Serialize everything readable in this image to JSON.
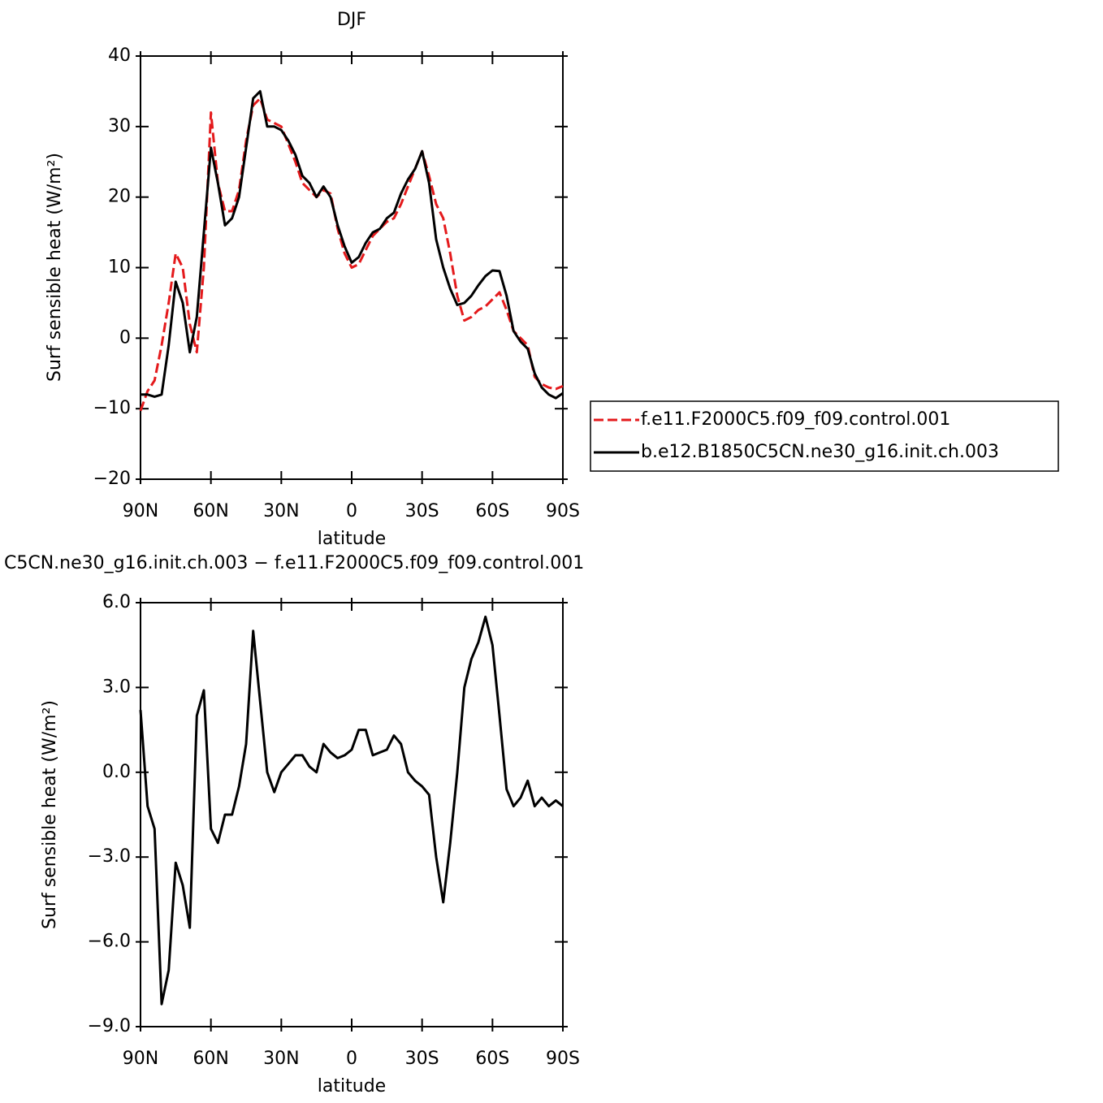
{
  "chart_data": [
    {
      "type": "line",
      "title": "DJF",
      "xlabel": "latitude",
      "ylabel": "Surf sensible heat (W/m²)",
      "x": [
        90,
        87,
        84,
        81,
        78,
        75,
        72,
        69,
        66,
        63,
        60,
        57,
        54,
        51,
        48,
        45,
        42,
        39,
        36,
        33,
        30,
        27,
        24,
        21,
        18,
        15,
        12,
        9,
        6,
        3,
        0,
        -3,
        -6,
        -9,
        -12,
        -15,
        -18,
        -21,
        -24,
        -27,
        -30,
        -33,
        -36,
        -39,
        -42,
        -45,
        -48,
        -51,
        -54,
        -57,
        -60,
        -63,
        -66,
        -69,
        -72,
        -75,
        -78,
        -81,
        -84,
        -87,
        -90
      ],
      "xlim": [
        90,
        -90
      ],
      "xticks": [
        {
          "value": 90,
          "label": "90N"
        },
        {
          "value": 60,
          "label": "60N"
        },
        {
          "value": 30,
          "label": "30N"
        },
        0,
        {
          "value": -30,
          "label": "30S"
        },
        {
          "value": -60,
          "label": "60S"
        },
        {
          "value": -90,
          "label": "90S"
        }
      ],
      "ylim": [
        -20,
        40
      ],
      "yticks": [
        {
          "value": -20,
          "label": "−20"
        },
        {
          "value": -10,
          "label": "−10"
        },
        0,
        10,
        20,
        30,
        40
      ],
      "legend": "right",
      "series": [
        {
          "name": "f.e11.F2000C5.f09_f09.control.001",
          "color": "#e41a1c",
          "dash": true,
          "values": [
            -10.3,
            -7.5,
            -6,
            -1,
            5,
            12,
            10,
            2,
            -2,
            10,
            32,
            22,
            18,
            18,
            21,
            28,
            33,
            34,
            31,
            30.5,
            30,
            27.5,
            25,
            22,
            21,
            20,
            21,
            20.5,
            15.5,
            12,
            10,
            10.5,
            12.5,
            14.5,
            15.5,
            16.5,
            17,
            19,
            21.5,
            24,
            26.5,
            23,
            19,
            17,
            12,
            6,
            2.5,
            3,
            4,
            4.5,
            5.5,
            6.5,
            4,
            1,
            0,
            -1,
            -5.5,
            -6.5,
            -7,
            -7.2,
            -6.8
          ]
        },
        {
          "name": "b.e12.B1850C5CN.ne30_g16.init.ch.003",
          "color": "#000000",
          "dash": false,
          "values": [
            -8,
            -8,
            -8.3,
            -8,
            -1,
            8,
            5,
            -2,
            3,
            15,
            27,
            22,
            16,
            17,
            20,
            27,
            34,
            35,
            30,
            30,
            29.5,
            28,
            26,
            23,
            22,
            20,
            21.5,
            20,
            16,
            13,
            10.7,
            11.5,
            13.5,
            15,
            15.5,
            17,
            17.8,
            20.5,
            22.5,
            24,
            26.5,
            22,
            14,
            10,
            7,
            4.7,
            5,
            6,
            7.5,
            8.8,
            9.6,
            9.5,
            6,
            1,
            -0.5,
            -1.5,
            -5,
            -7,
            -8,
            -8.5,
            -7.8
          ]
        }
      ]
    },
    {
      "type": "line",
      "title": "C5CN.ne30_g16.init.ch.003 − f.e11.F2000C5.f09_f09.control.001",
      "xlabel": "latitude",
      "ylabel": "Surf sensible heat (W/m²)",
      "x": [
        90,
        87,
        84,
        81,
        78,
        75,
        72,
        69,
        66,
        63,
        60,
        57,
        54,
        51,
        48,
        45,
        42,
        39,
        36,
        33,
        30,
        27,
        24,
        21,
        18,
        15,
        12,
        9,
        6,
        3,
        0,
        -3,
        -6,
        -9,
        -12,
        -15,
        -18,
        -21,
        -24,
        -27,
        -30,
        -33,
        -36,
        -39,
        -42,
        -45,
        -48,
        -51,
        -54,
        -57,
        -60,
        -63,
        -66,
        -69,
        -72,
        -75,
        -78,
        -81,
        -84,
        -87,
        -90
      ],
      "xlim": [
        90,
        -90
      ],
      "xticks": [
        {
          "value": 90,
          "label": "90N"
        },
        {
          "value": 60,
          "label": "60N"
        },
        {
          "value": 30,
          "label": "30N"
        },
        0,
        {
          "value": -30,
          "label": "30S"
        },
        {
          "value": -60,
          "label": "60S"
        },
        {
          "value": -90,
          "label": "90S"
        }
      ],
      "ylim": [
        -9,
        6
      ],
      "yticks": [
        {
          "value": -9,
          "label": "−9.0"
        },
        {
          "value": -6,
          "label": "−6.0"
        },
        {
          "value": -3,
          "label": "−3.0"
        },
        {
          "value": 0,
          "label": "0.0"
        },
        {
          "value": 3,
          "label": "3.0"
        },
        {
          "value": 6,
          "label": "6.0"
        }
      ],
      "series": [
        {
          "color": "#000000",
          "dash": false,
          "values": [
            2.2,
            -1.2,
            -2,
            -8.2,
            -7,
            -3.2,
            -4,
            -5.5,
            2,
            2.9,
            -2,
            -2.5,
            -1.5,
            -1.5,
            -0.5,
            1,
            5,
            2.5,
            0,
            -0.7,
            0,
            0.3,
            0.6,
            0.6,
            0.2,
            0,
            1,
            0.7,
            0.5,
            0.6,
            0.8,
            1.5,
            1.5,
            0.6,
            0.7,
            0.8,
            1.3,
            1,
            0,
            -0.3,
            -0.5,
            -0.8,
            -3,
            -4.6,
            -2.5,
            0,
            3,
            4,
            4.6,
            5.5,
            4.5,
            2,
            -0.6,
            -1.2,
            -0.9,
            -0.3,
            -1.2,
            -0.9,
            -1.2,
            -1,
            -1.2
          ]
        }
      ]
    }
  ]
}
